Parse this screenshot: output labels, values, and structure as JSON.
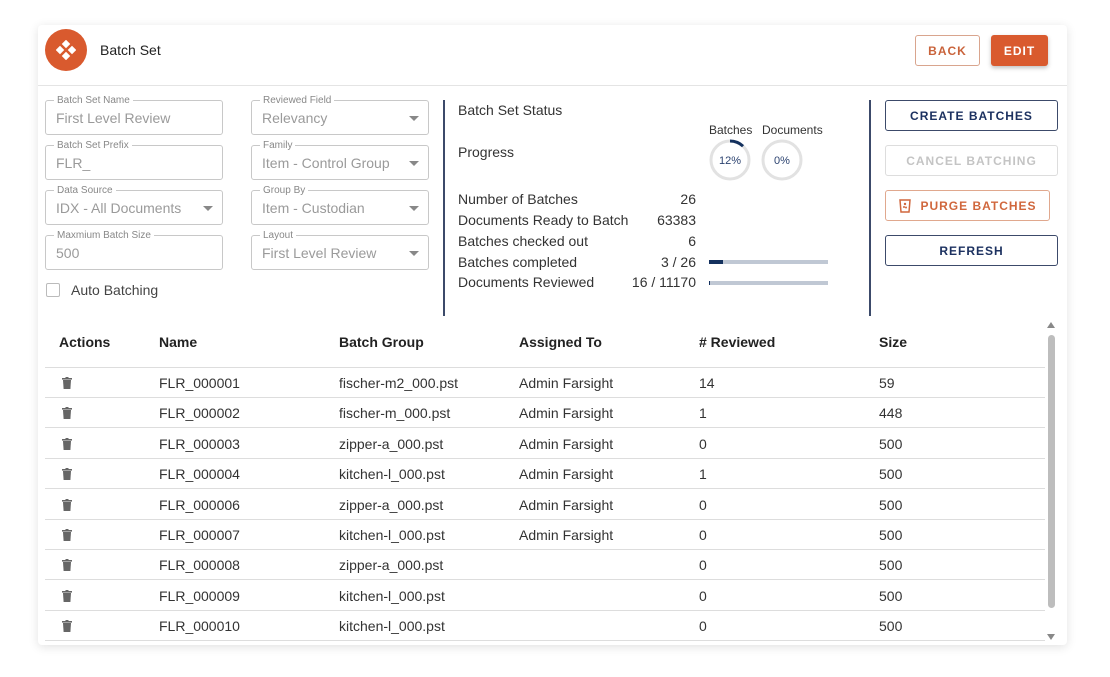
{
  "header": {
    "title": "Batch Set",
    "back_label": "BACK",
    "edit_label": "EDIT",
    "accent": "#d95a2e"
  },
  "form": {
    "batch_set_name": {
      "label": "Batch Set Name",
      "value": "First Level Review"
    },
    "batch_set_prefix": {
      "label": "Batch Set Prefix",
      "value": "FLR_"
    },
    "data_source": {
      "label": "Data Source",
      "value": "IDX - All Documents"
    },
    "max_batch_size": {
      "label": "Maxmium Batch Size",
      "value": "500"
    },
    "reviewed_field": {
      "label": "Reviewed Field",
      "value": "Relevancy"
    },
    "family": {
      "label": "Family",
      "value": "Item - Control Group"
    },
    "group_by": {
      "label": "Group By",
      "value": "Item - Custodian"
    },
    "layout": {
      "label": "Layout",
      "value": "First Level Review"
    },
    "auto_batching": {
      "label": "Auto Batching",
      "checked": false
    }
  },
  "status": {
    "title": "Batch Set Status",
    "progress_label": "Progress",
    "batches_ring": {
      "label": "Batches",
      "text": "12%",
      "percent": 12
    },
    "documents_ring": {
      "label": "Documents",
      "text": "0%",
      "percent": 0
    },
    "stats": [
      {
        "label": "Number of Batches",
        "value": "26"
      },
      {
        "label": "Documents Ready to Batch",
        "value": "63383"
      },
      {
        "label": "Batches checked out",
        "value": "6"
      },
      {
        "label": "Batches completed",
        "value": "3 / 26",
        "fraction": 0.115
      },
      {
        "label": "Documents Reviewed",
        "value": "16 / 11170",
        "fraction": 0.0014
      }
    ]
  },
  "actions": {
    "create": "CREATE BATCHES",
    "cancel": "CANCEL BATCHING",
    "purge": "PURGE BATCHES",
    "refresh": "REFRESH"
  },
  "table": {
    "columns": [
      "Actions",
      "Name",
      "Batch Group",
      "Assigned To",
      "# Reviewed",
      "Size"
    ],
    "rows": [
      [
        "FLR_000001",
        "fischer-m2_000.pst",
        "Admin Farsight",
        "14",
        "59"
      ],
      [
        "FLR_000002",
        "fischer-m_000.pst",
        "Admin Farsight",
        "1",
        "448"
      ],
      [
        "FLR_000003",
        "zipper-a_000.pst",
        "Admin Farsight",
        "0",
        "500"
      ],
      [
        "FLR_000004",
        "kitchen-l_000.pst",
        "Admin Farsight",
        "1",
        "500"
      ],
      [
        "FLR_000006",
        "zipper-a_000.pst",
        "Admin Farsight",
        "0",
        "500"
      ],
      [
        "FLR_000007",
        "kitchen-l_000.pst",
        "Admin Farsight",
        "0",
        "500"
      ],
      [
        "FLR_000008",
        "zipper-a_000.pst",
        "",
        "0",
        "500"
      ],
      [
        "FLR_000009",
        "kitchen-l_000.pst",
        "",
        "0",
        "500"
      ],
      [
        "FLR_000010",
        "kitchen-l_000.pst",
        "",
        "0",
        "500"
      ]
    ]
  }
}
